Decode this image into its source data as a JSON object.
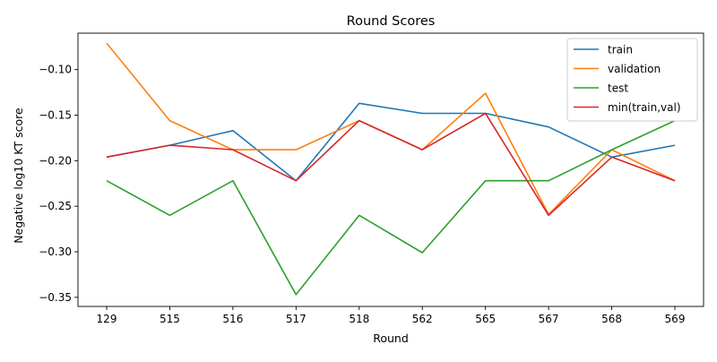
{
  "chart_data": {
    "type": "line",
    "title": "Round Scores",
    "xlabel": "Round",
    "ylabel": "Negative log10 KT score",
    "categories": [
      "129",
      "515",
      "516",
      "517",
      "518",
      "562",
      "565",
      "567",
      "568",
      "569"
    ],
    "ylim": [
      -0.36,
      -0.06
    ],
    "yticks": [
      -0.35,
      -0.3,
      -0.25,
      -0.2,
      -0.15,
      -0.1
    ],
    "ytick_labels": [
      "−0.35",
      "−0.30",
      "−0.25",
      "−0.20",
      "−0.15",
      "−0.10"
    ],
    "grid": false,
    "legend_position": "top-right",
    "series": [
      {
        "name": "train",
        "color": "#1f77b4",
        "values": [
          -0.196,
          -0.183,
          -0.167,
          -0.222,
          -0.137,
          -0.148,
          -0.148,
          -0.163,
          -0.196,
          -0.183
        ]
      },
      {
        "name": "validation",
        "color": "#ff7f0e",
        "values": [
          -0.071,
          -0.156,
          -0.188,
          -0.188,
          -0.156,
          -0.188,
          -0.126,
          -0.259,
          -0.188,
          -0.222
        ]
      },
      {
        "name": "test",
        "color": "#2ca02c",
        "values": [
          -0.222,
          -0.26,
          -0.222,
          -0.347,
          -0.26,
          -0.301,
          -0.222,
          -0.222,
          -0.188,
          -0.156
        ]
      },
      {
        "name": "min(train,val)",
        "color": "#d62728",
        "values": [
          -0.196,
          -0.183,
          -0.188,
          -0.222,
          -0.156,
          -0.188,
          -0.148,
          -0.26,
          -0.196,
          -0.222
        ]
      }
    ]
  }
}
